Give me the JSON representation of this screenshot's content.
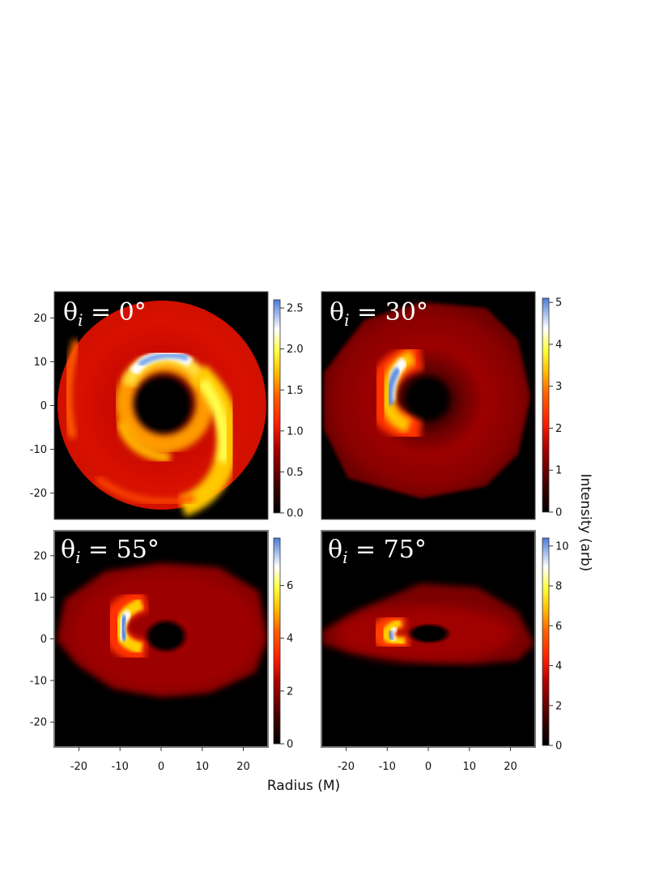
{
  "chart_data": {
    "type": "heatmap",
    "xlabel": "Radius (M)",
    "ylabel": "",
    "colorbar_label": "Intensity (arb)",
    "xlim": [
      -26,
      26
    ],
    "ylim": [
      -26,
      26
    ],
    "x_ticks": [
      "-20",
      "-10",
      "0",
      "10",
      "20"
    ],
    "y_ticks": [
      "20",
      "10",
      "0",
      "-10",
      "-20"
    ],
    "colormap": [
      "#000000",
      "#3a0000",
      "#aa0000",
      "#ff2000",
      "#ff6a00",
      "#ffc000",
      "#ffff40",
      "#ffffff",
      "#4a7bd8"
    ],
    "panels": [
      {
        "greek": "θ",
        "sub": "i",
        "rest": " = 0°",
        "inclination_deg": 0,
        "colorbar_max": 2.6,
        "colorbar_ticks": [
          "2.5",
          "2.0",
          "1.5",
          "1.0",
          "0.5",
          "0.0"
        ],
        "colorbar_tick_values": [
          2.5,
          2.0,
          1.5,
          1.0,
          0.5,
          0.0
        ]
      },
      {
        "greek": "θ",
        "sub": "i",
        "rest": " = 30°",
        "inclination_deg": 30,
        "colorbar_max": 5.1,
        "colorbar_ticks": [
          "5",
          "4",
          "3",
          "2",
          "1",
          "0"
        ],
        "colorbar_tick_values": [
          5,
          4,
          3,
          2,
          1,
          0
        ]
      },
      {
        "greek": "θ",
        "sub": "i",
        "rest": " = 55°",
        "inclination_deg": 55,
        "colorbar_max": 7.8,
        "colorbar_ticks": [
          "6",
          "4",
          "2",
          "0"
        ],
        "colorbar_tick_values": [
          6,
          4,
          2,
          0
        ]
      },
      {
        "greek": "θ",
        "sub": "i",
        "rest": " = 75°",
        "inclination_deg": 75,
        "colorbar_max": 10.4,
        "colorbar_ticks": [
          "10",
          "8",
          "6",
          "4",
          "2",
          "0"
        ],
        "colorbar_tick_values": [
          10,
          8,
          6,
          4,
          2,
          0
        ]
      }
    ]
  }
}
